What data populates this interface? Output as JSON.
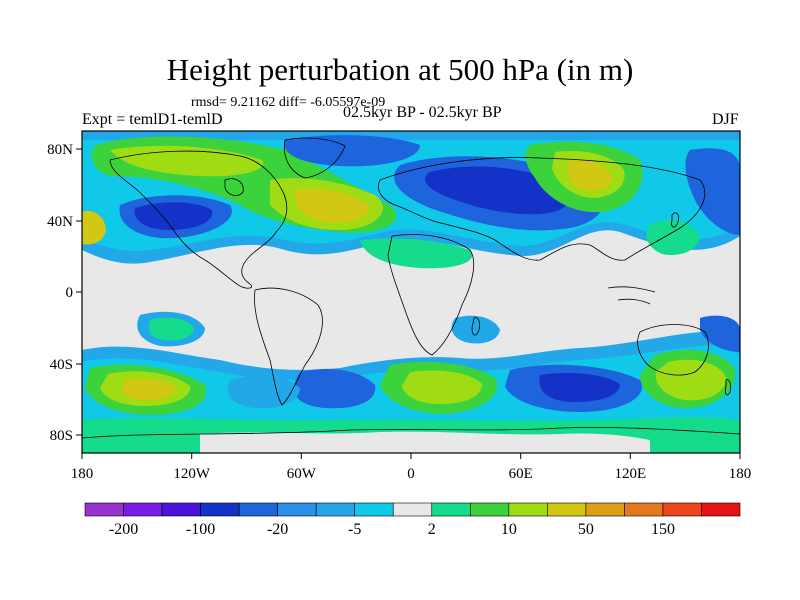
{
  "title": "Height perturbation at 500 hPa (in m)",
  "stats_label": "rmsd= 9.21162 diff= -6.05597e-09",
  "experiment_label": "Expt = temlD1-temlD",
  "period_label": "02.5kyr BP - 02.5kyr BP",
  "season_label": "DJF",
  "map": {
    "projection": "cylindrical equidistant",
    "lon_range": [
      -180,
      180
    ],
    "lat_range": [
      -90,
      90
    ],
    "lon_ticks": [
      "180",
      "120W",
      "60W",
      "0",
      "60E",
      "120E",
      "180"
    ],
    "lat_ticks": [
      "80N",
      "40N",
      "0",
      "40S",
      "80S"
    ]
  },
  "colorbar": {
    "colors": [
      "#9a32cd",
      "#7a1ee6",
      "#4a14d8",
      "#1432c8",
      "#1e64dc",
      "#2a90e8",
      "#22a8e8",
      "#10c8e8",
      "#e8e8e8",
      "#14dc8c",
      "#3cd23c",
      "#a0dc14",
      "#d2c814",
      "#dca014",
      "#e6781e",
      "#eb461e",
      "#e61414"
    ],
    "labels": [
      "-200",
      "-100",
      "-20",
      "-5",
      "2",
      "10",
      "50",
      "150"
    ]
  }
}
